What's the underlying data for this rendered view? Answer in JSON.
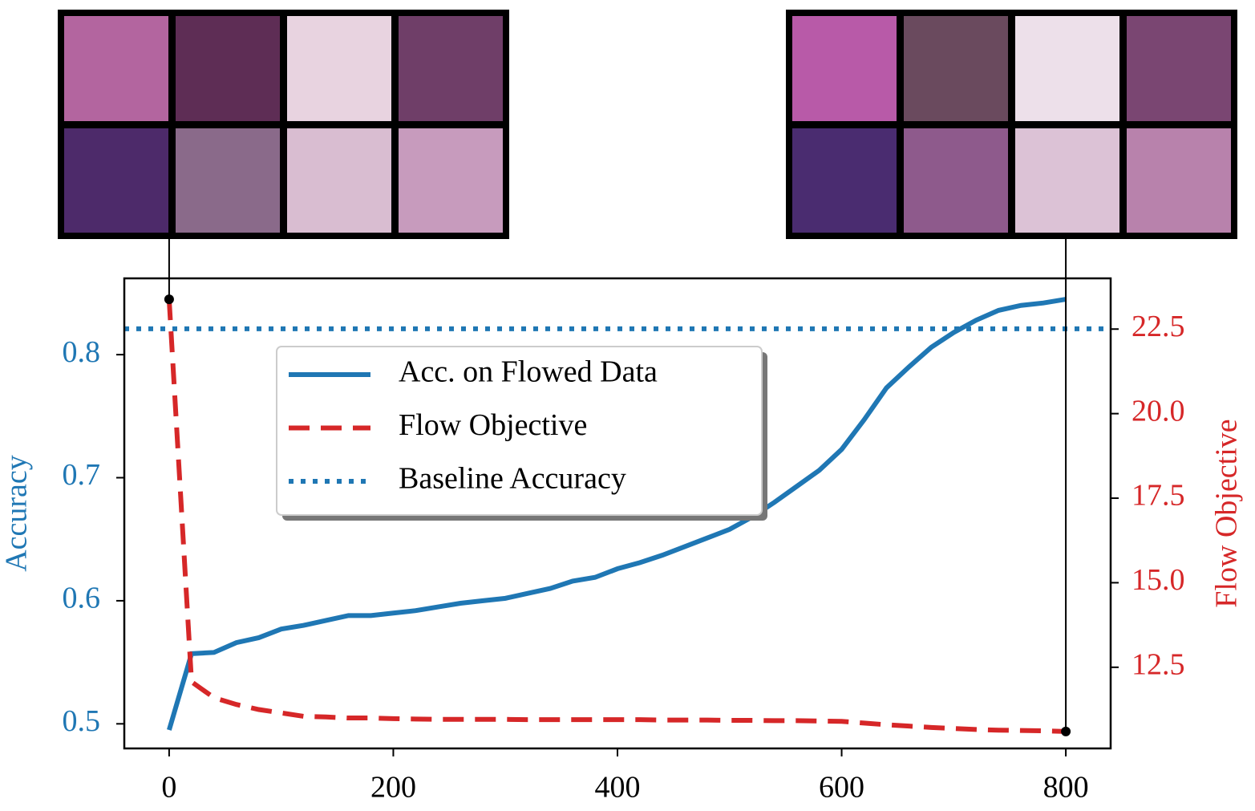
{
  "chart_data": {
    "type": "line",
    "x": [
      0,
      20,
      40,
      60,
      80,
      100,
      120,
      140,
      160,
      180,
      200,
      220,
      240,
      260,
      280,
      300,
      320,
      340,
      360,
      380,
      400,
      420,
      440,
      460,
      480,
      500,
      520,
      540,
      560,
      580,
      600,
      620,
      640,
      660,
      680,
      700,
      720,
      740,
      760,
      780,
      800
    ],
    "series": [
      {
        "name": "Acc. on Flowed Data",
        "color": "#1f77b4",
        "style": "solid",
        "axis": "y",
        "values": [
          0.495,
          0.557,
          0.558,
          0.566,
          0.57,
          0.577,
          0.58,
          0.584,
          0.588,
          0.588,
          0.59,
          0.592,
          0.595,
          0.598,
          0.6,
          0.602,
          0.606,
          0.61,
          0.616,
          0.619,
          0.626,
          0.631,
          0.637,
          0.644,
          0.651,
          0.658,
          0.668,
          0.68,
          0.693,
          0.706,
          0.723,
          0.747,
          0.773,
          0.79,
          0.806,
          0.818,
          0.828,
          0.836,
          0.84,
          0.842,
          0.845
        ]
      },
      {
        "name": "Flow Objective",
        "color": "#d62728",
        "style": "dashed",
        "axis": "y2",
        "values": [
          23.38,
          12.07,
          11.6,
          11.4,
          11.25,
          11.15,
          11.05,
          11.03,
          11.0,
          11.0,
          10.98,
          10.97,
          10.96,
          10.96,
          10.96,
          10.96,
          10.95,
          10.95,
          10.95,
          10.95,
          10.95,
          10.95,
          10.94,
          10.94,
          10.94,
          10.93,
          10.93,
          10.92,
          10.92,
          10.91,
          10.9,
          10.85,
          10.8,
          10.76,
          10.72,
          10.69,
          10.66,
          10.64,
          10.63,
          10.62,
          10.6
        ]
      },
      {
        "name": "Baseline Accuracy",
        "color": "#1f77b4",
        "style": "dotted",
        "axis": "y",
        "value": 0.821
      }
    ],
    "ylabel": "Accuracy",
    "y2label": "Flow Objective",
    "xlim": [
      -40,
      840
    ],
    "xticks": [
      0,
      200,
      400,
      600,
      800
    ],
    "ylim": [
      0.48,
      0.862
    ],
    "yticks": [
      0.5,
      0.6,
      0.7,
      0.8
    ],
    "y2lim": [
      10.1,
      24.0
    ],
    "y2ticks": [
      12.5,
      {
        "value": 15,
        "label": "15.0"
      },
      17.5,
      {
        "value": 20,
        "label": "20.0"
      },
      22.5
    ],
    "grid": false,
    "legend": "upper center"
  }
}
